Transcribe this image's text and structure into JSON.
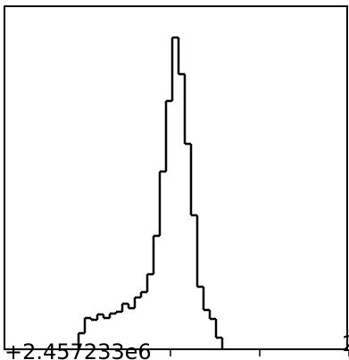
{
  "chart_data": {
    "type": "histogram",
    "bins": [
      -1.03,
      -0.96,
      -0.89,
      -0.82,
      -0.75,
      -0.68,
      -0.61,
      -0.54,
      -0.47,
      -0.4,
      -0.33,
      -0.26,
      -0.19,
      -0.12,
      -0.05,
      0.02,
      0.09,
      0.16,
      0.23,
      0.3,
      0.37,
      0.44,
      0.51,
      0.58
    ],
    "values": [
      18,
      35,
      33,
      39,
      35,
      40,
      42,
      51,
      46,
      58,
      64,
      84,
      127,
      199,
      278,
      349,
      308,
      230,
      150,
      70,
      44,
      34,
      13
    ],
    "color": "#000000",
    "xlim": [
      -1.86,
      1.98
    ],
    "ylim": [
      0,
      384
    ],
    "xticks": [
      {
        "value": 0,
        "label": null
      },
      {
        "value": 1,
        "label": null
      },
      2
    ],
    "x_offset_label": "+2.457233e6"
  }
}
